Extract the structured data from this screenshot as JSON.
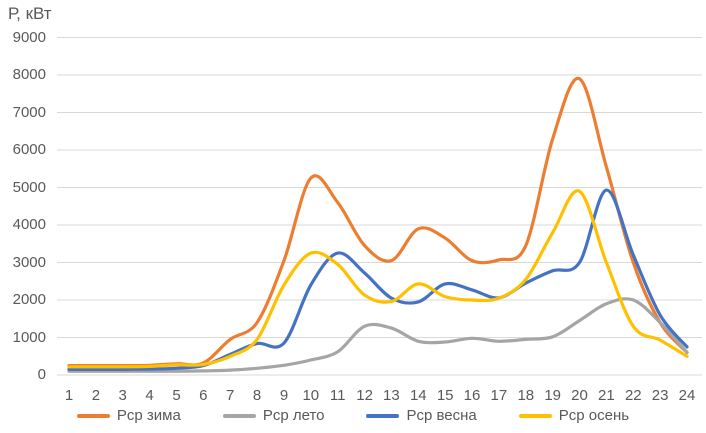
{
  "chart_data": {
    "type": "line",
    "title": "",
    "ylabel": "Р, кВт",
    "xlabel": "",
    "x": [
      1,
      2,
      3,
      4,
      5,
      6,
      7,
      8,
      9,
      10,
      11,
      12,
      13,
      14,
      15,
      16,
      17,
      18,
      19,
      20,
      21,
      22,
      23,
      24
    ],
    "ylim": [
      0,
      9000
    ],
    "ytick_step": 1000,
    "grid": "horizontal-only",
    "smooth": true,
    "legend_position": "bottom",
    "gridline_color": "#D9D9D9",
    "axis_text_color": "#595959",
    "series": [
      {
        "name": "Рср зима",
        "color": "#ED7D31",
        "values": [
          250,
          250,
          250,
          260,
          300,
          320,
          950,
          1400,
          3050,
          5250,
          4600,
          3450,
          3050,
          3900,
          3650,
          3050,
          3070,
          3450,
          6300,
          7900,
          5550,
          3000,
          1400,
          600
        ]
      },
      {
        "name": "Рср лето",
        "color": "#A5A5A5",
        "values": [
          100,
          100,
          100,
          100,
          100,
          110,
          130,
          180,
          260,
          400,
          620,
          1300,
          1250,
          900,
          880,
          980,
          900,
          950,
          1020,
          1450,
          1900,
          2000,
          1400,
          600
        ]
      },
      {
        "name": "Рср весна",
        "color": "#4472C4",
        "values": [
          150,
          150,
          150,
          160,
          180,
          250,
          550,
          840,
          850,
          2400,
          3250,
          2720,
          2050,
          1950,
          2430,
          2270,
          2060,
          2450,
          2780,
          3000,
          4930,
          3200,
          1600,
          750
        ]
      },
      {
        "name": "Рср осень",
        "color": "#FFC000",
        "values": [
          220,
          220,
          220,
          230,
          270,
          280,
          500,
          950,
          2400,
          3250,
          2950,
          2130,
          1960,
          2430,
          2090,
          2000,
          2050,
          2550,
          3800,
          4900,
          3000,
          1300,
          930,
          500
        ]
      }
    ]
  }
}
